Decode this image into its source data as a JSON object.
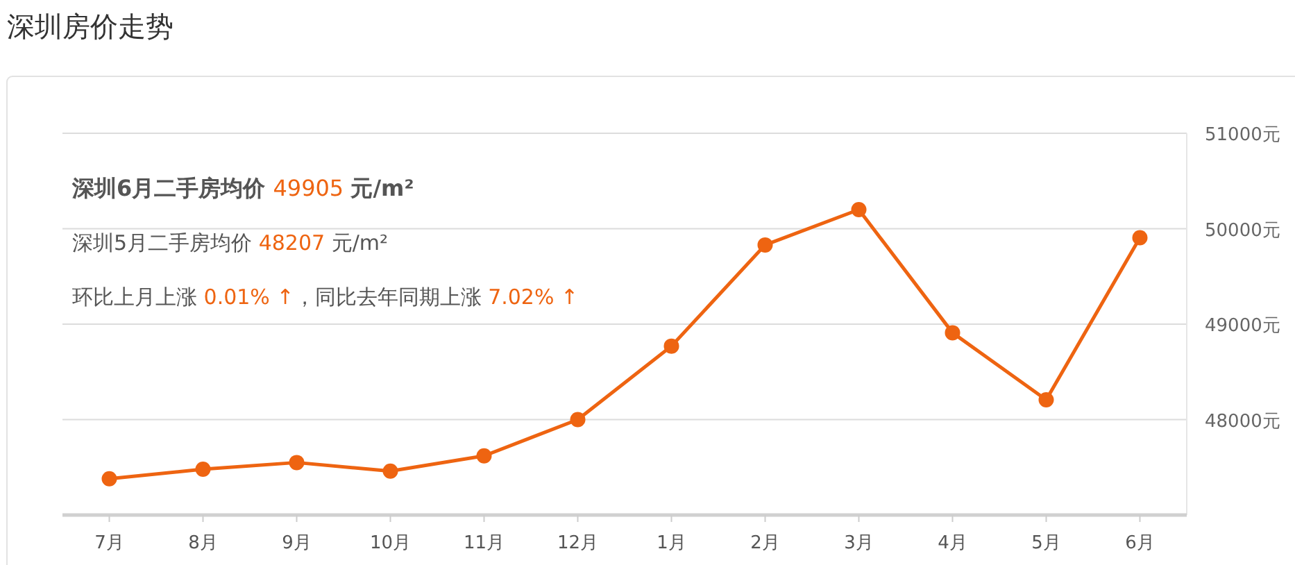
{
  "chart_data": {
    "type": "line",
    "title": "深圳房价走势",
    "annotations": [
      "深圳6月二手房均价 49905 元/m²",
      "深圳5月二手房均价 48207 元/m²",
      "环比上月上涨 0.01% ↑，同比去年同期上涨 7.02% ↑"
    ],
    "categories": [
      "7月",
      "8月",
      "9月",
      "10月",
      "11月",
      "12月",
      "1月",
      "2月",
      "3月",
      "4月",
      "5月",
      "6月"
    ],
    "series": [
      {
        "color": "#ee6411",
        "values": [
          47380,
          47480,
          47550,
          47460,
          47620,
          48000,
          48770,
          49830,
          50200,
          48910,
          48207,
          49905
        ]
      }
    ],
    "ylim": [
      47000,
      51000
    ],
    "yticks": [
      {
        "value": 48000,
        "label": "48000元"
      },
      {
        "value": 49000,
        "label": "49000元"
      },
      {
        "value": 50000,
        "label": "50000元"
      },
      {
        "value": 51000,
        "label": "51000元"
      }
    ],
    "grid": "y",
    "marker": "circle",
    "line_style": "solid"
  }
}
